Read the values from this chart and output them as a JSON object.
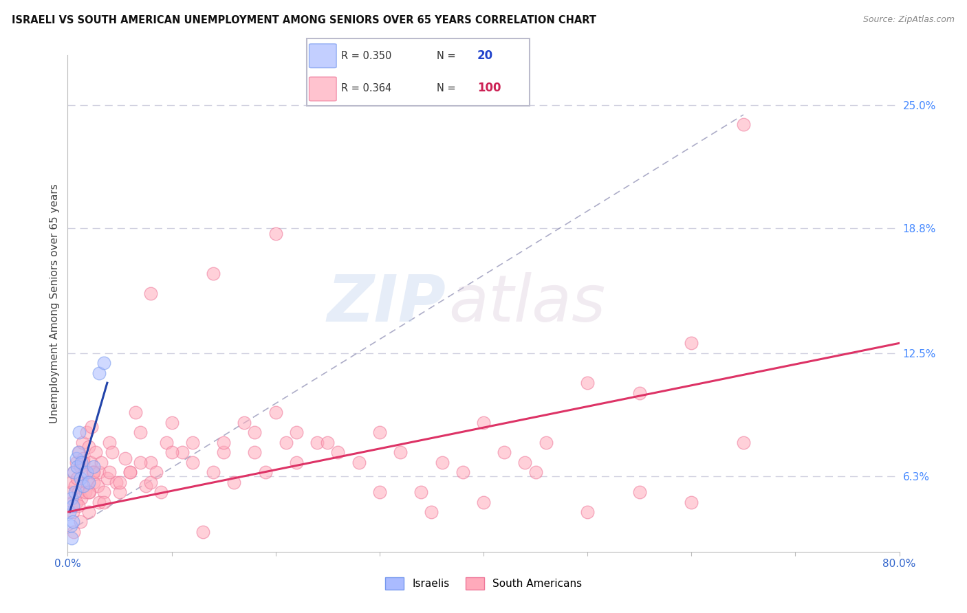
{
  "title": "ISRAELI VS SOUTH AMERICAN UNEMPLOYMENT AMONG SENIORS OVER 65 YEARS CORRELATION CHART",
  "source": "Source: ZipAtlas.com",
  "ylabel": "Unemployment Among Seniors over 65 years",
  "right_ytick_values": [
    6.3,
    12.5,
    18.8,
    25.0
  ],
  "right_ytick_labels": [
    "6.3%",
    "12.5%",
    "18.8%",
    "25.0%"
  ],
  "legend_isr_R": "R = 0.350",
  "legend_sa_R": "R = 0.364",
  "legend_isr_N": "20",
  "legend_sa_N": "100",
  "watermark_zip": "ZIP",
  "watermark_atlas": "atlas",
  "israeli_face_color": "#aabbff",
  "israeli_edge_color": "#7799ee",
  "sa_face_color": "#ffaabb",
  "sa_edge_color": "#ee7799",
  "israeli_line_color": "#2244aa",
  "sa_line_color": "#dd3366",
  "diagonal_color": "#9999bb",
  "grid_color": "#ccccdd",
  "background_color": "#ffffff",
  "xmin": 0.0,
  "xmax": 80.0,
  "ymin": 2.5,
  "ymax": 27.5,
  "israeli_scatter_x": [
    0.2,
    0.3,
    0.4,
    0.5,
    0.6,
    0.7,
    0.8,
    0.9,
    1.0,
    1.1,
    1.2,
    1.3,
    1.5,
    1.8,
    2.0,
    2.5,
    3.0,
    3.5,
    0.4,
    0.5
  ],
  "israeli_scatter_y": [
    4.5,
    3.8,
    5.2,
    4.8,
    6.5,
    5.5,
    7.2,
    6.8,
    7.5,
    8.5,
    6.2,
    7.0,
    5.8,
    6.5,
    6.0,
    6.8,
    11.5,
    12.0,
    3.2,
    4.0
  ],
  "sa_scatter_x": [
    0.3,
    0.4,
    0.5,
    0.6,
    0.7,
    0.8,
    0.9,
    1.0,
    1.1,
    1.2,
    1.3,
    1.4,
    1.5,
    1.6,
    1.7,
    1.8,
    1.9,
    2.0,
    2.1,
    2.2,
    2.3,
    2.4,
    2.5,
    2.7,
    2.9,
    3.0,
    3.2,
    3.5,
    3.8,
    4.0,
    4.3,
    4.7,
    5.0,
    5.5,
    6.0,
    6.5,
    7.0,
    7.5,
    8.0,
    8.5,
    9.0,
    9.5,
    10.0,
    11.0,
    12.0,
    13.0,
    14.0,
    15.0,
    16.0,
    17.0,
    18.0,
    19.0,
    20.0,
    21.0,
    22.0,
    24.0,
    26.0,
    28.0,
    30.0,
    32.0,
    34.0,
    36.0,
    38.0,
    40.0,
    42.0,
    44.0,
    46.0,
    50.0,
    55.0,
    60.0,
    0.5,
    0.8,
    1.0,
    1.5,
    2.0,
    2.5,
    3.0,
    4.0,
    5.0,
    6.0,
    7.0,
    8.0,
    10.0,
    12.0,
    15.0,
    18.0,
    22.0,
    25.0,
    30.0,
    35.0,
    40.0,
    45.0,
    50.0,
    55.0,
    60.0,
    65.0,
    0.6,
    1.2,
    2.0,
    3.5
  ],
  "sa_scatter_y": [
    5.5,
    6.0,
    5.0,
    6.5,
    5.8,
    7.0,
    6.2,
    5.5,
    7.5,
    6.8,
    5.2,
    8.0,
    7.2,
    6.5,
    5.5,
    8.5,
    6.0,
    7.8,
    5.5,
    7.0,
    8.8,
    6.5,
    6.0,
    7.5,
    5.8,
    6.5,
    7.0,
    5.5,
    6.2,
    8.0,
    7.5,
    6.0,
    5.5,
    7.2,
    6.5,
    9.5,
    8.5,
    5.8,
    7.0,
    6.5,
    5.5,
    8.0,
    9.0,
    7.5,
    8.0,
    3.5,
    6.5,
    7.5,
    6.0,
    9.0,
    7.5,
    6.5,
    9.5,
    8.0,
    8.5,
    8.0,
    7.5,
    7.0,
    8.5,
    7.5,
    5.5,
    7.0,
    6.5,
    9.0,
    7.5,
    7.0,
    8.0,
    11.0,
    10.5,
    13.0,
    4.5,
    5.0,
    4.8,
    7.0,
    5.5,
    6.5,
    5.0,
    6.5,
    6.0,
    6.5,
    7.0,
    6.0,
    7.5,
    7.0,
    8.0,
    8.5,
    7.0,
    8.0,
    5.5,
    4.5,
    5.0,
    6.5,
    4.5,
    5.5,
    5.0,
    8.0,
    3.5,
    4.0,
    4.5,
    5.0
  ],
  "sa_highpoint_x": 65.0,
  "sa_highpoint_y": 24.0,
  "sa_highpoint2_x": 20.0,
  "sa_highpoint2_y": 18.5,
  "sa_high3_x": 14.0,
  "sa_high3_y": 16.5,
  "sa_high4_x": 8.0,
  "sa_high4_y": 15.5,
  "isr_line_x0": 0.2,
  "isr_line_x1": 3.8,
  "isr_line_y0": 4.5,
  "isr_line_y1": 11.0,
  "sa_line_x0": 0.0,
  "sa_line_x1": 80.0,
  "sa_line_y0": 4.5,
  "sa_line_y1": 13.0,
  "diag_x0": 0.0,
  "diag_x1": 65.0,
  "diag_y0": 3.5,
  "diag_y1": 24.5
}
